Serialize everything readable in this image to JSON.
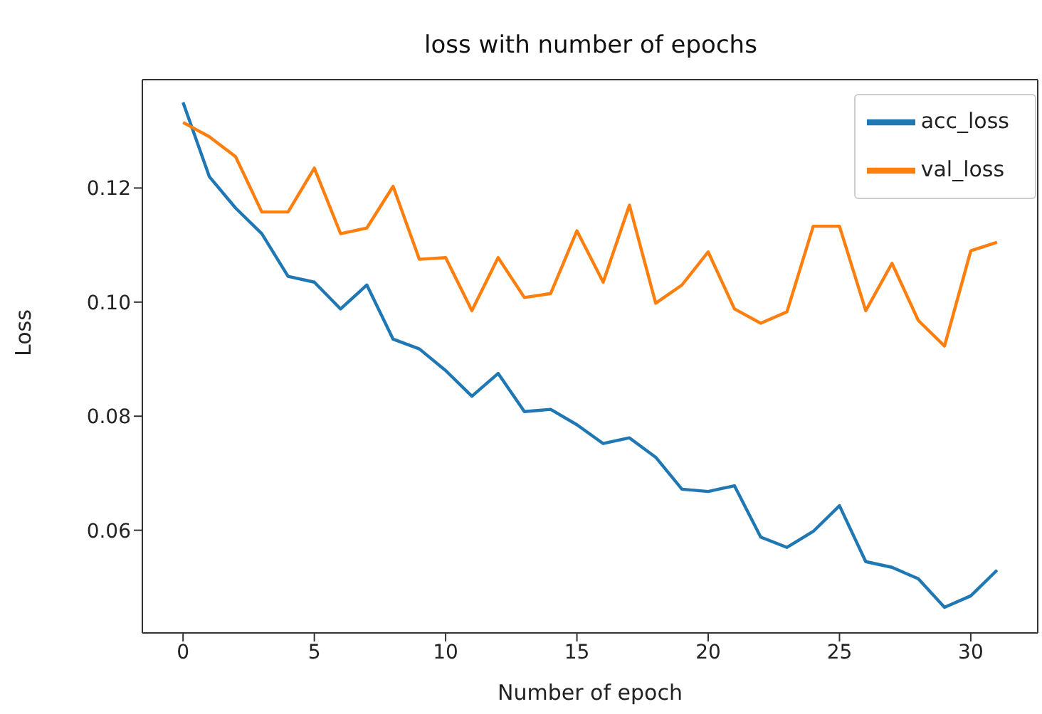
{
  "chart_data": {
    "type": "line",
    "title": "loss with number of epochs",
    "xlabel": "Number of epoch",
    "ylabel": "Loss",
    "x": [
      0,
      1,
      2,
      3,
      4,
      5,
      6,
      7,
      8,
      9,
      10,
      11,
      12,
      13,
      14,
      15,
      16,
      17,
      18,
      19,
      20,
      21,
      22,
      23,
      24,
      25,
      26,
      27,
      28,
      29,
      30,
      31
    ],
    "series": [
      {
        "name": "acc_loss",
        "color": "#1f77b4",
        "values": [
          0.135,
          0.122,
          0.1165,
          0.112,
          0.1045,
          0.1035,
          0.0988,
          0.103,
          0.0935,
          0.0918,
          0.088,
          0.0835,
          0.0875,
          0.0808,
          0.0812,
          0.0785,
          0.0752,
          0.0762,
          0.0728,
          0.0672,
          0.0668,
          0.0678,
          0.0588,
          0.057,
          0.0598,
          0.0643,
          0.0545,
          0.0535,
          0.0515,
          0.0465,
          0.0485,
          0.053
        ]
      },
      {
        "name": "val_loss",
        "color": "#ff7f0e",
        "values": [
          0.1315,
          0.129,
          0.1255,
          0.1158,
          0.1158,
          0.1235,
          0.112,
          0.113,
          0.1203,
          0.1075,
          0.1078,
          0.0985,
          0.1078,
          0.1008,
          0.1015,
          0.1125,
          0.1035,
          0.117,
          0.0998,
          0.103,
          0.1088,
          0.0988,
          0.0963,
          0.0983,
          0.1133,
          0.1133,
          0.0985,
          0.1068,
          0.0968,
          0.0923,
          0.109,
          0.1105
        ]
      }
    ],
    "xlim": [
      -1.55,
      32.55
    ],
    "xticks": [
      0,
      5,
      10,
      15,
      20,
      25,
      30
    ],
    "ylim": [
      0.042,
      0.139
    ],
    "yticks": [
      0.06,
      0.08,
      {
        "value": 0.1,
        "label": "0.10"
      },
      0.12
    ],
    "legend": "top right",
    "grid": false,
    "marker": "none",
    "line_style": "solid"
  }
}
